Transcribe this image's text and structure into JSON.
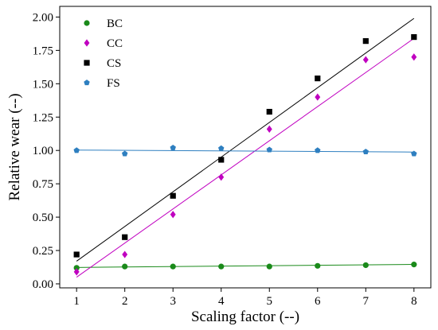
{
  "chart_data": {
    "type": "scatter",
    "xlabel": "Scaling factor (--)",
    "ylabel": "Relative wear (--)",
    "xlim": [
      0.65,
      8.35
    ],
    "ylim": [
      -0.03,
      2.08
    ],
    "xticks": [
      1,
      2,
      3,
      4,
      5,
      6,
      7,
      8
    ],
    "yticks": [
      0.0,
      0.25,
      0.5,
      0.75,
      1.0,
      1.25,
      1.5,
      1.75,
      2.0
    ],
    "ytick_labels": [
      "0.00",
      "0.25",
      "0.50",
      "0.75",
      "1.00",
      "1.25",
      "1.50",
      "1.75",
      "2.00"
    ],
    "grid": false,
    "legend_position": "top-left",
    "series": [
      {
        "name": "BC",
        "color": "#1a8a1a",
        "marker": "circle",
        "x": [
          1,
          2,
          3,
          4,
          5,
          6,
          7,
          8
        ],
        "y": [
          0.12,
          0.13,
          0.13,
          0.13,
          0.13,
          0.135,
          0.14,
          0.145
        ],
        "fit": [
          0.123,
          0.146
        ]
      },
      {
        "name": "CC",
        "color": "#c000c0",
        "marker": "diamond",
        "x": [
          1,
          2,
          3,
          4,
          5,
          6,
          7,
          8
        ],
        "y": [
          0.09,
          0.22,
          0.52,
          0.8,
          1.16,
          1.4,
          1.68,
          1.7
        ],
        "fit": [
          0.05,
          1.84
        ]
      },
      {
        "name": "CS",
        "color": "#000000",
        "marker": "square",
        "x": [
          1,
          2,
          3,
          4,
          5,
          6,
          7,
          8
        ],
        "y": [
          0.22,
          0.35,
          0.66,
          0.93,
          1.29,
          1.54,
          1.82,
          1.85
        ],
        "fit": [
          0.17,
          1.99
        ]
      },
      {
        "name": "FS",
        "color": "#2e7fc0",
        "marker": "pentagon",
        "x": [
          1,
          2,
          3,
          4,
          5,
          6,
          7,
          8
        ],
        "y": [
          1.0,
          0.975,
          1.02,
          1.015,
          1.005,
          1.0,
          0.99,
          0.975
        ],
        "fit": [
          1.003,
          0.988
        ]
      }
    ]
  }
}
